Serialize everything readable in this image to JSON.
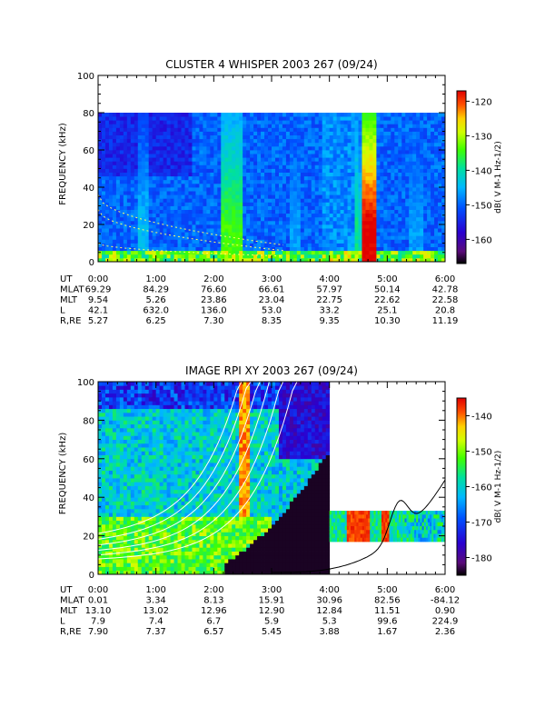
{
  "chart_data": [
    {
      "type": "heatmap",
      "title": "CLUSTER 4 WHISPER 2003 267 (09/24)",
      "ylabel": "FREQUENCY (kHz)",
      "ylim": [
        0,
        100
      ],
      "yticks": [
        "0",
        "20",
        "40",
        "60",
        "80",
        "100"
      ],
      "xticks": [
        "0:00",
        "1:00",
        "2:00",
        "3:00",
        "4:00",
        "5:00",
        "6:00"
      ],
      "colorbar": {
        "label": "dB( V M-1 Hz-1/2)",
        "ticks": [
          "-120",
          "-130",
          "-140",
          "-150",
          "-160"
        ],
        "range": [
          -167,
          -117
        ]
      },
      "data_extent_khz": 80,
      "ephemeris": {
        "row_labels": [
          "UT",
          "MLAT",
          "MLT",
          "L",
          "R,RE"
        ],
        "rows": [
          [
            "0:00",
            "1:00",
            "2:00",
            "3:00",
            "4:00",
            "5:00",
            "6:00"
          ],
          [
            "69.29",
            "84.29",
            "76.60",
            "66.61",
            "57.97",
            "50.14",
            "42.78"
          ],
          [
            "9.54",
            "5.26",
            "23.86",
            "23.04",
            "22.75",
            "22.62",
            "22.58"
          ],
          [
            "42.1",
            "632.0",
            "136.0",
            "53.0",
            "33.2",
            "25.1",
            "20.8"
          ],
          [
            "5.27",
            "6.25",
            "7.30",
            "8.35",
            "9.35",
            "10.30",
            "11.19"
          ]
        ]
      }
    },
    {
      "type": "heatmap",
      "title": "IMAGE RPI XY 2003 267 (09/24)",
      "ylabel": "FREQUENCY (kHz)",
      "ylim": [
        0,
        100
      ],
      "yticks": [
        "0",
        "20",
        "40",
        "60",
        "80",
        "100"
      ],
      "xticks": [
        "0:00",
        "1:00",
        "2:00",
        "3:00",
        "4:00",
        "5:00",
        "6:00"
      ],
      "colorbar": {
        "label": "dB( V M-1 Hz-1/2)",
        "ticks": [
          "-140",
          "-150",
          "-160",
          "-170",
          "-180"
        ],
        "range": [
          -185,
          -135
        ]
      },
      "ephemeris": {
        "row_labels": [
          "UT",
          "MLAT",
          "MLT",
          "L",
          "R,RE"
        ],
        "rows": [
          [
            "0:00",
            "1:00",
            "2:00",
            "3:00",
            "4:00",
            "5:00",
            "6:00"
          ],
          [
            "0.01",
            "3.34",
            "8.13",
            "15.91",
            "30.96",
            "82.56",
            "-84.12"
          ],
          [
            "13.10",
            "13.02",
            "12.96",
            "12.90",
            "12.84",
            "11.51",
            "0.90"
          ],
          [
            "7.9",
            "7.4",
            "6.7",
            "5.9",
            "5.3",
            "99.6",
            "224.9"
          ],
          [
            "7.90",
            "7.37",
            "6.57",
            "5.45",
            "3.88",
            "1.67",
            "2.36"
          ]
        ]
      }
    }
  ]
}
